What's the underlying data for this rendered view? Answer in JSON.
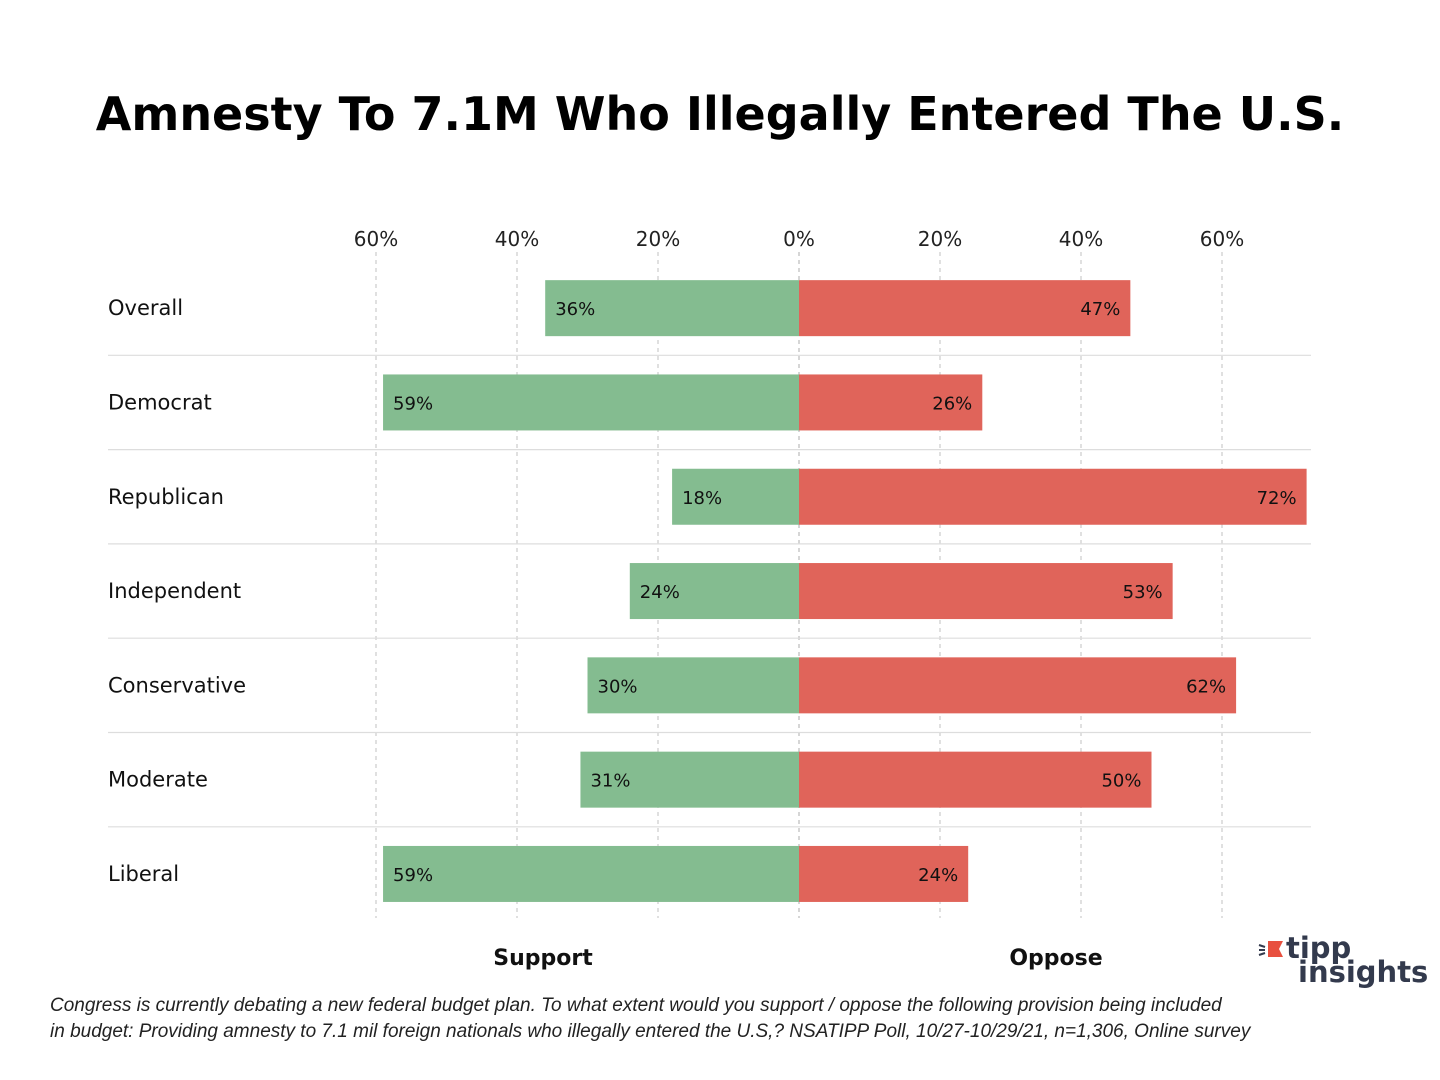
{
  "chart_data": {
    "type": "bar",
    "orientation": "horizontal-diverging",
    "title": "Amnesty To 7.1M Who Illegally Entered The U.S.",
    "categories": [
      "Overall",
      "Democrat",
      "Republican",
      "Independent",
      "Conservative",
      "Moderate",
      "Liberal"
    ],
    "series": [
      {
        "name": "Support",
        "values": [
          36,
          59,
          18,
          24,
          30,
          31,
          59
        ],
        "color": "#84bc90",
        "direction": "left"
      },
      {
        "name": "Oppose",
        "values": [
          47,
          26,
          72,
          53,
          62,
          50,
          24
        ],
        "color": "#e0645a",
        "direction": "right"
      }
    ],
    "xlim": [
      -60,
      72
    ],
    "tick_values": [
      -60,
      -40,
      -20,
      0,
      20,
      40,
      60
    ],
    "tick_labels": [
      "60%",
      "40%",
      "20%",
      "0%",
      "20%",
      "40%",
      "60%"
    ],
    "value_suffix": "%",
    "grid": "vertical dashed",
    "axis_position": "top"
  },
  "footnote": [
    "Congress is currently debating a new federal budget plan. To what extent would you support / oppose the following provision being included",
    "in budget: Providing amnesty to 7.1 mil foreign nationals who illegally entered the U.S,? NSATIPP Poll, 10/27-10/29/21, n=1,306, Online survey"
  ],
  "logo": {
    "line1": "tipp",
    "line2": "insights",
    "accent": "#e8503f"
  }
}
